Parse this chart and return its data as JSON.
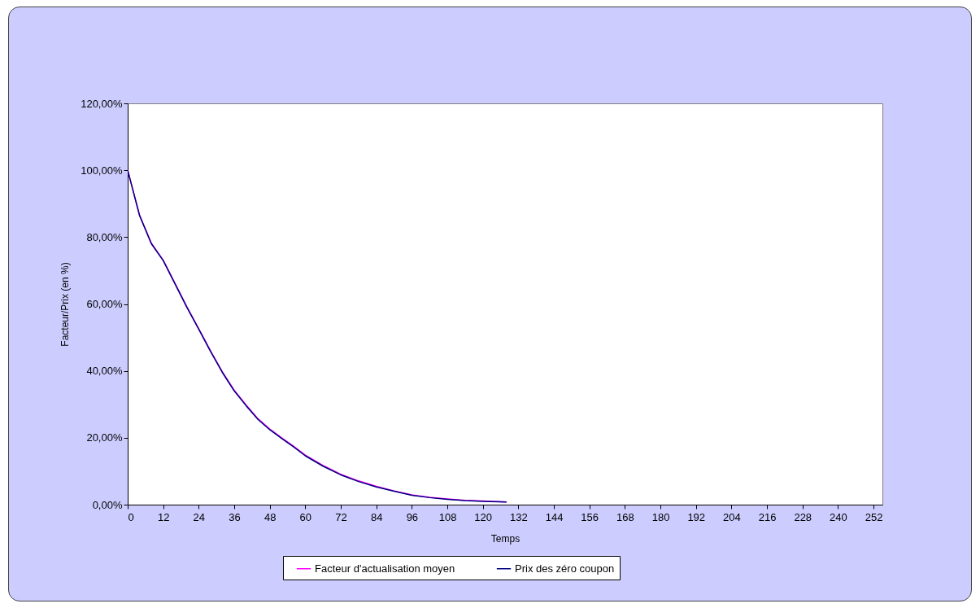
{
  "chart_data": {
    "type": "line",
    "xlabel": "Temps",
    "ylabel": "Facteur/Prix (en %)",
    "x": [
      0,
      4,
      8,
      12,
      16,
      20,
      24,
      28,
      32,
      36,
      40,
      44,
      48,
      52,
      56,
      60,
      66,
      72,
      78,
      84,
      90,
      96,
      102,
      108,
      114,
      120,
      128
    ],
    "series": [
      {
        "name": "Facteur d'actualisation moyen",
        "color": "#ff00ff",
        "values": [
          100,
          86.6,
          78.2,
          73.1,
          66.2,
          59.2,
          52.6,
          46,
          39.7,
          34.2,
          29.8,
          25.7,
          22.6,
          20,
          17.5,
          14.8,
          11.7,
          9.1,
          7.1,
          5.5,
          4.1,
          2.9,
          2.2,
          1.7,
          1.3,
          1.1,
          0.8
        ]
      },
      {
        "name": "Prix des zéro coupon",
        "color": "#000080",
        "values": [
          100,
          86.5,
          78,
          73,
          66,
          59,
          52.5,
          45.8,
          39.5,
          34,
          29.6,
          25.5,
          22.4,
          19.8,
          17.3,
          14.6,
          11.5,
          8.9,
          6.9,
          5.3,
          4,
          2.8,
          2.1,
          1.6,
          1.2,
          1,
          0.8
        ]
      }
    ],
    "xlim": [
      0,
      255
    ],
    "xticks": [
      0,
      12,
      24,
      36,
      48,
      60,
      72,
      84,
      96,
      108,
      120,
      132,
      144,
      156,
      168,
      180,
      192,
      204,
      216,
      228,
      240,
      252
    ],
    "ylim": [
      0,
      120
    ],
    "yticks": [
      {
        "value": 0,
        "label": "0,00%"
      },
      {
        "value": 20,
        "label": "20,00%"
      },
      {
        "value": 40,
        "label": "40,00%"
      },
      {
        "value": 60,
        "label": "60,00%"
      },
      {
        "value": 80,
        "label": "80,00%"
      },
      {
        "value": 100,
        "label": "100,00%"
      },
      {
        "value": 120,
        "label": "120,00%"
      }
    ],
    "grid": false,
    "legend": "bottom",
    "marker": "none",
    "line_style": "solid"
  }
}
